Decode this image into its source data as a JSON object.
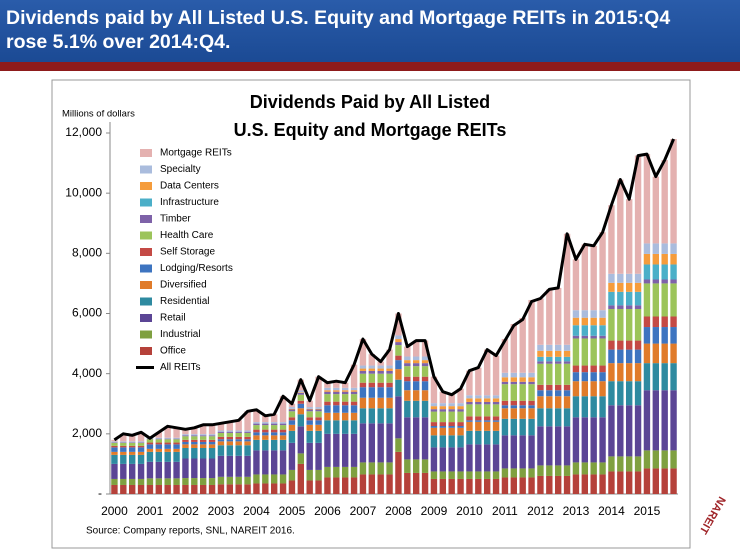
{
  "header": {
    "title_lines": [
      "Dividends paid by All Listed U.S. Equity and Mortgage REITs in 2015:Q4",
      "rose 5.1% over 2014:Q4."
    ]
  },
  "logo": "NAREIT",
  "chart_data": {
    "type": "stacked_bar_line",
    "title_lines": [
      "Dividends Paid by All Listed",
      "U.S. Equity and Mortgage REITs"
    ],
    "y_label": "Millions of dollars",
    "source": "Source: Company reports, SNL, NAREIT 2016.",
    "ylim": [
      0,
      12000
    ],
    "yticks": [
      {
        "value": 0,
        "label": "-"
      },
      {
        "value": 2000,
        "label": "2,000"
      },
      {
        "value": 4000,
        "label": "4,000"
      },
      {
        "value": 6000,
        "label": "6,000"
      },
      {
        "value": 8000,
        "label": "8,000"
      },
      {
        "value": 10000,
        "label": "10,000"
      },
      {
        "value": 12000,
        "label": "12,000"
      }
    ],
    "categories": [
      "2000",
      null,
      null,
      null,
      "2001",
      null,
      null,
      null,
      "2002",
      null,
      null,
      null,
      "2003",
      null,
      null,
      null,
      "2004",
      null,
      null,
      null,
      "2005",
      null,
      null,
      null,
      "2006",
      null,
      null,
      null,
      "2007",
      null,
      null,
      null,
      "2008",
      null,
      null,
      null,
      "2009",
      null,
      null,
      null,
      "2010",
      null,
      null,
      null,
      "2011",
      null,
      null,
      null,
      "2012",
      null,
      null,
      null,
      "2013",
      null,
      null,
      null,
      "2014",
      null,
      null,
      null,
      "2015",
      null,
      null,
      null
    ],
    "series": [
      {
        "name": "Mortgage REITs",
        "color": "#e4b1b0",
        "values": [
          50,
          250,
          200,
          300,
          50,
          180,
          380,
          330,
          160,
          210,
          310,
          310,
          240,
          290,
          340,
          640,
          410,
          210,
          260,
          860,
          110,
          360,
          210,
          1010,
          170,
          220,
          170,
          770,
          880,
          380,
          130,
          530,
          730,
          330,
          530,
          530,
          880,
          380,
          280,
          480,
          820,
          920,
          1520,
          1320,
          1120,
          1620,
          1820,
          2420,
          1540,
          1840,
          1890,
          3690,
          1690,
          2190,
          2140,
          2590,
          2280,
          3130,
          2480,
          3930,
          2970,
          2220,
          2770,
          3470
        ]
      },
      {
        "name": "Specialty",
        "color": "#aabcdd",
        "values": [
          30,
          30,
          30,
          30,
          30,
          30,
          30,
          30,
          40,
          40,
          40,
          40,
          40,
          40,
          40,
          40,
          50,
          50,
          50,
          50,
          60,
          60,
          60,
          60,
          80,
          80,
          80,
          80,
          100,
          100,
          100,
          100,
          120,
          120,
          120,
          120,
          100,
          100,
          100,
          100,
          100,
          100,
          100,
          100,
          150,
          150,
          150,
          150,
          200,
          200,
          200,
          200,
          250,
          250,
          250,
          250,
          300,
          300,
          300,
          300,
          350,
          350,
          350,
          350
        ]
      },
      {
        "name": "Data Centers",
        "color": "#f59c3c",
        "values": [
          0,
          0,
          0,
          0,
          0,
          0,
          0,
          0,
          0,
          0,
          0,
          0,
          0,
          0,
          0,
          0,
          0,
          0,
          0,
          0,
          20,
          20,
          20,
          20,
          50,
          50,
          50,
          50,
          80,
          80,
          80,
          80,
          100,
          100,
          100,
          100,
          100,
          100,
          100,
          100,
          120,
          120,
          120,
          120,
          150,
          150,
          150,
          150,
          200,
          200,
          200,
          200,
          250,
          250,
          250,
          250,
          300,
          300,
          300,
          300,
          350,
          350,
          350,
          350
        ]
      },
      {
        "name": "Infrastructure",
        "color": "#4bafc8",
        "values": [
          0,
          0,
          0,
          0,
          0,
          0,
          0,
          0,
          0,
          0,
          0,
          0,
          0,
          0,
          0,
          0,
          0,
          0,
          0,
          0,
          0,
          0,
          0,
          0,
          0,
          0,
          0,
          0,
          0,
          0,
          0,
          0,
          0,
          0,
          0,
          0,
          0,
          0,
          0,
          0,
          0,
          0,
          0,
          0,
          0,
          0,
          0,
          0,
          150,
          150,
          150,
          150,
          350,
          350,
          350,
          350,
          450,
          450,
          450,
          450,
          500,
          500,
          500,
          500
        ]
      },
      {
        "name": "Timber",
        "color": "#7e62a8",
        "values": [
          20,
          20,
          20,
          20,
          20,
          20,
          20,
          20,
          30,
          30,
          30,
          30,
          40,
          40,
          40,
          40,
          50,
          50,
          50,
          50,
          60,
          60,
          60,
          60,
          80,
          80,
          80,
          80,
          90,
          90,
          90,
          90,
          100,
          100,
          100,
          100,
          80,
          80,
          80,
          80,
          80,
          80,
          80,
          80,
          80,
          80,
          80,
          80,
          80,
          80,
          80,
          80,
          90,
          90,
          90,
          90,
          120,
          120,
          120,
          120,
          130,
          130,
          130,
          130
        ]
      },
      {
        "name": "Health Care",
        "color": "#9cc45a",
        "values": [
          100,
          100,
          100,
          100,
          110,
          110,
          110,
          110,
          120,
          120,
          120,
          120,
          130,
          130,
          130,
          130,
          150,
          150,
          150,
          150,
          200,
          200,
          200,
          200,
          250,
          250,
          250,
          250,
          300,
          300,
          300,
          300,
          350,
          350,
          350,
          350,
          350,
          350,
          350,
          350,
          400,
          400,
          400,
          400,
          550,
          550,
          550,
          550,
          700,
          700,
          700,
          700,
          900,
          900,
          900,
          900,
          1050,
          1050,
          1050,
          1050,
          1100,
          1100,
          1100,
          1100
        ]
      },
      {
        "name": "Self Storage",
        "color": "#c44a45",
        "values": [
          50,
          50,
          50,
          50,
          60,
          60,
          60,
          60,
          70,
          70,
          70,
          70,
          80,
          80,
          80,
          80,
          90,
          90,
          90,
          90,
          100,
          100,
          100,
          100,
          120,
          120,
          120,
          120,
          150,
          150,
          150,
          150,
          150,
          150,
          150,
          150,
          130,
          130,
          130,
          130,
          130,
          130,
          130,
          130,
          150,
          150,
          150,
          150,
          180,
          180,
          180,
          180,
          220,
          220,
          220,
          220,
          300,
          300,
          300,
          300,
          350,
          350,
          350,
          350
        ]
      },
      {
        "name": "Lodging/Resorts",
        "color": "#3d74c0",
        "values": [
          150,
          150,
          150,
          150,
          150,
          150,
          150,
          150,
          80,
          80,
          80,
          80,
          70,
          70,
          70,
          70,
          100,
          100,
          100,
          100,
          150,
          150,
          150,
          150,
          250,
          250,
          250,
          250,
          350,
          350,
          350,
          350,
          300,
          300,
          300,
          300,
          60,
          60,
          60,
          60,
          50,
          50,
          50,
          50,
          100,
          100,
          100,
          100,
          200,
          200,
          200,
          200,
          300,
          300,
          300,
          300,
          450,
          450,
          450,
          450,
          550,
          550,
          550,
          550
        ]
      },
      {
        "name": "Diversified",
        "color": "#e07b2a",
        "values": [
          100,
          100,
          100,
          100,
          100,
          100,
          100,
          100,
          120,
          120,
          120,
          120,
          130,
          130,
          130,
          130,
          150,
          150,
          150,
          150,
          200,
          200,
          200,
          200,
          250,
          250,
          250,
          250,
          350,
          350,
          350,
          350,
          350,
          350,
          350,
          350,
          250,
          250,
          250,
          250,
          300,
          300,
          300,
          300,
          350,
          350,
          350,
          350,
          400,
          400,
          400,
          400,
          500,
          500,
          500,
          500,
          600,
          600,
          600,
          600,
          650,
          650,
          650,
          650
        ]
      },
      {
        "name": "Residential",
        "color": "#2e8aa0",
        "values": [
          300,
          300,
          300,
          300,
          330,
          330,
          330,
          330,
          350,
          350,
          350,
          350,
          350,
          350,
          350,
          350,
          350,
          350,
          350,
          350,
          400,
          400,
          400,
          400,
          450,
          450,
          450,
          450,
          500,
          500,
          500,
          500,
          550,
          550,
          550,
          550,
          400,
          400,
          400,
          400,
          450,
          450,
          450,
          450,
          550,
          550,
          550,
          550,
          600,
          600,
          600,
          600,
          700,
          700,
          700,
          700,
          800,
          800,
          800,
          800,
          900,
          900,
          900,
          900
        ]
      },
      {
        "name": "Retail",
        "color": "#5b4595",
        "values": [
          500,
          500,
          500,
          500,
          550,
          550,
          550,
          550,
          650,
          650,
          650,
          650,
          700,
          700,
          700,
          700,
          800,
          800,
          800,
          800,
          900,
          900,
          900,
          900,
          1100,
          1100,
          1100,
          1100,
          1300,
          1300,
          1300,
          1300,
          1400,
          1400,
          1400,
          1400,
          800,
          800,
          800,
          800,
          900,
          900,
          900,
          900,
          1100,
          1100,
          1100,
          1100,
          1300,
          1300,
          1300,
          1300,
          1500,
          1500,
          1500,
          1500,
          1700,
          1700,
          1700,
          1700,
          2000,
          2000,
          2000,
          2000
        ]
      },
      {
        "name": "Industrial",
        "color": "#7fa040",
        "values": [
          200,
          200,
          200,
          200,
          220,
          220,
          220,
          220,
          230,
          230,
          230,
          230,
          250,
          250,
          250,
          250,
          300,
          300,
          300,
          300,
          350,
          350,
          350,
          350,
          350,
          350,
          350,
          350,
          400,
          400,
          400,
          400,
          450,
          450,
          450,
          450,
          250,
          250,
          250,
          250,
          250,
          250,
          250,
          250,
          300,
          300,
          300,
          300,
          350,
          350,
          350,
          350,
          400,
          400,
          400,
          400,
          500,
          500,
          500,
          500,
          600,
          600,
          600,
          600
        ]
      },
      {
        "name": "Office",
        "color": "#b5413a",
        "values": [
          300,
          300,
          300,
          300,
          300,
          300,
          300,
          300,
          300,
          300,
          300,
          300,
          320,
          320,
          320,
          320,
          350,
          350,
          350,
          350,
          450,
          1000,
          450,
          450,
          550,
          550,
          550,
          550,
          650,
          650,
          650,
          650,
          1400,
          700,
          700,
          700,
          500,
          500,
          500,
          500,
          500,
          500,
          500,
          500,
          550,
          550,
          550,
          550,
          600,
          600,
          600,
          600,
          650,
          650,
          650,
          650,
          750,
          750,
          750,
          750,
          850,
          850,
          850,
          850
        ]
      }
    ],
    "line": {
      "name": "All REITs",
      "color": "#000000",
      "values": [
        1800,
        2000,
        1950,
        2050,
        1850,
        2050,
        2250,
        2200,
        2150,
        2200,
        2300,
        2300,
        2350,
        2400,
        2450,
        2750,
        2800,
        2600,
        2650,
        3250,
        3000,
        3800,
        3100,
        3900,
        3700,
        3750,
        3700,
        4300,
        5150,
        4650,
        4400,
        4800,
        6000,
        4900,
        5100,
        5100,
        3900,
        3400,
        3300,
        3500,
        4100,
        4200,
        4800,
        4600,
        5100,
        5600,
        5800,
        6400,
        6500,
        6800,
        6850,
        8650,
        7800,
        8300,
        8250,
        8700,
        9600,
        10450,
        9800,
        11250,
        11300,
        10550,
        11100,
        11800
      ]
    }
  }
}
